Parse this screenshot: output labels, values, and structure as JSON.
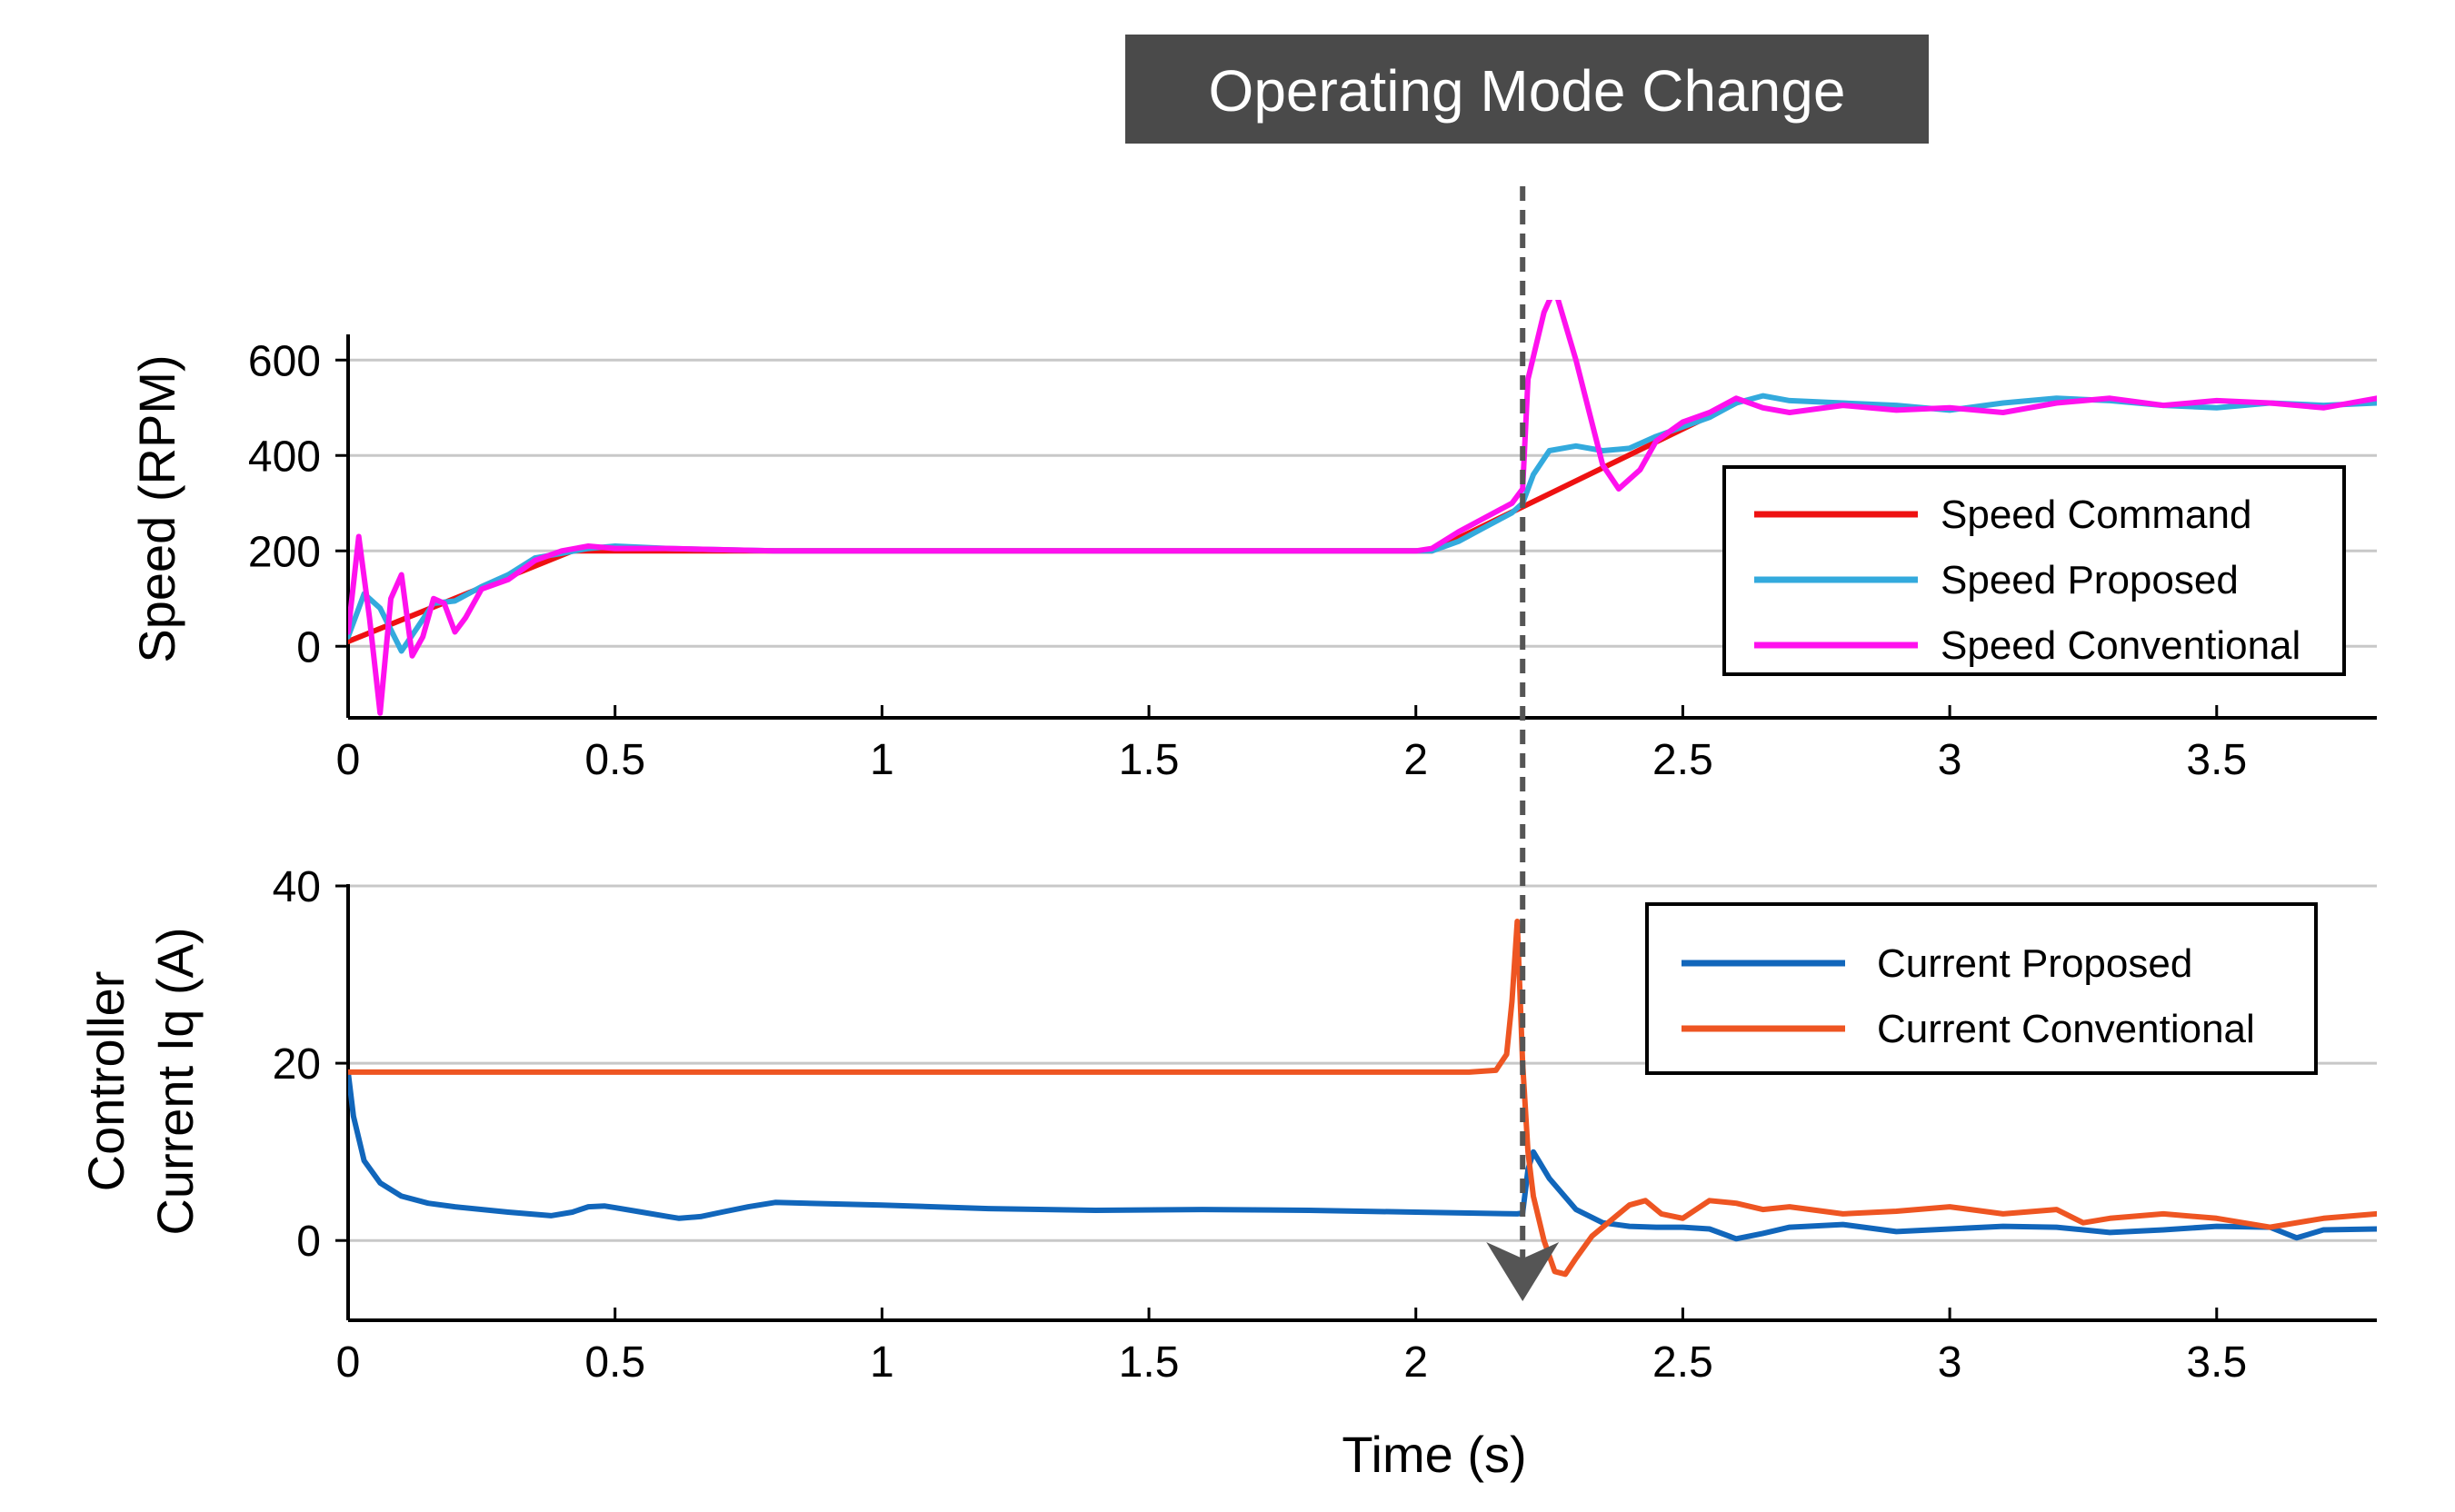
{
  "banner": {
    "text": "Operating Mode Change"
  },
  "event": {
    "time": 2.2
  },
  "xaxis_label": "Time (s)",
  "chart_data": [
    {
      "type": "line",
      "title": "",
      "ylabel": "Speed (RPM)",
      "xlabel": "",
      "xlim": [
        0,
        3.8
      ],
      "ylim": [
        -150,
        650
      ],
      "xticks": [
        0,
        0.5,
        1,
        1.5,
        2,
        2.5,
        3,
        3.5
      ],
      "xtick_labels": [
        "0",
        "0.5",
        "1",
        "1.5",
        "2",
        "2.5",
        "3",
        "3.5"
      ],
      "yticks": [
        0,
        200,
        400,
        600
      ],
      "ytick_labels": [
        "0",
        "200",
        "400",
        "600"
      ],
      "grid": "horizontal",
      "legend_position": "right",
      "series": [
        {
          "name": "Speed Command",
          "color": "#ee1111",
          "x": [
            0,
            0.42,
            2.03,
            2.6
          ],
          "y": [
            10,
            200,
            200,
            510
          ]
        },
        {
          "name": "Speed Proposed",
          "color": "#33aadd",
          "x": [
            0,
            0.03,
            0.06,
            0.1,
            0.13,
            0.16,
            0.2,
            0.25,
            0.3,
            0.35,
            0.4,
            0.45,
            0.5,
            0.6,
            0.8,
            1.0,
            1.5,
            2.0,
            2.03,
            2.08,
            2.13,
            2.18,
            2.2,
            2.22,
            2.25,
            2.3,
            2.35,
            2.4,
            2.45,
            2.5,
            2.55,
            2.6,
            2.65,
            2.7,
            2.8,
            2.9,
            3.0,
            3.1,
            3.2,
            3.3,
            3.4,
            3.5,
            3.6,
            3.7,
            3.8
          ],
          "y": [
            20,
            110,
            80,
            -10,
            40,
            90,
            95,
            125,
            150,
            185,
            195,
            205,
            210,
            205,
            200,
            200,
            200,
            200,
            200,
            220,
            250,
            280,
            300,
            360,
            410,
            420,
            410,
            415,
            440,
            460,
            480,
            510,
            525,
            515,
            510,
            505,
            495,
            510,
            520,
            515,
            505,
            500,
            510,
            505,
            510
          ]
        },
        {
          "name": "Speed Conventional",
          "color": "#ff11ee",
          "x": [
            0,
            0.02,
            0.04,
            0.06,
            0.08,
            0.1,
            0.12,
            0.14,
            0.16,
            0.18,
            0.2,
            0.22,
            0.25,
            0.3,
            0.35,
            0.4,
            0.45,
            0.5,
            0.6,
            0.8,
            1.0,
            1.5,
            2.0,
            2.03,
            2.08,
            2.13,
            2.18,
            2.2,
            2.21,
            2.24,
            2.26,
            2.3,
            2.35,
            2.38,
            2.42,
            2.45,
            2.5,
            2.55,
            2.6,
            2.65,
            2.7,
            2.8,
            2.9,
            3.0,
            3.1,
            3.2,
            3.3,
            3.4,
            3.5,
            3.6,
            3.7,
            3.8
          ],
          "y": [
            30,
            230,
            60,
            -140,
            100,
            150,
            -20,
            20,
            100,
            90,
            30,
            60,
            120,
            140,
            180,
            200,
            210,
            205,
            205,
            200,
            200,
            200,
            200,
            205,
            240,
            270,
            300,
            330,
            560,
            700,
            750,
            600,
            380,
            330,
            370,
            430,
            470,
            490,
            520,
            500,
            490,
            505,
            495,
            500,
            490,
            510,
            520,
            505,
            515,
            510,
            500,
            520
          ]
        }
      ]
    },
    {
      "type": "line",
      "title": "",
      "ylabel_lines": [
        "Controller",
        "Current Iq (A)"
      ],
      "xlabel": "Time (s)",
      "xlim": [
        0,
        3.8
      ],
      "ylim": [
        -9,
        40
      ],
      "xticks": [
        0,
        0.5,
        1,
        1.5,
        2,
        2.5,
        3,
        3.5
      ],
      "xtick_labels": [
        "0",
        "0.5",
        "1",
        "1.5",
        "2",
        "2.5",
        "3",
        "3.5"
      ],
      "yticks": [
        0,
        20,
        40
      ],
      "ytick_labels": [
        "0",
        "20",
        "40"
      ],
      "grid": "horizontal",
      "legend_position": "top-right",
      "series": [
        {
          "name": "Current Proposed",
          "color": "#1166bb",
          "x": [
            0,
            0.01,
            0.03,
            0.06,
            0.1,
            0.15,
            0.2,
            0.3,
            0.38,
            0.42,
            0.45,
            0.48,
            0.5,
            0.55,
            0.6,
            0.62,
            0.66,
            0.7,
            0.75,
            0.8,
            1.0,
            1.2,
            1.4,
            1.6,
            1.8,
            2.0,
            2.1,
            2.19,
            2.2,
            2.21,
            2.22,
            2.25,
            2.3,
            2.35,
            2.4,
            2.45,
            2.5,
            2.55,
            2.6,
            2.65,
            2.7,
            2.8,
            2.9,
            3.0,
            3.1,
            3.2,
            3.3,
            3.4,
            3.5,
            3.6,
            3.65,
            3.7,
            3.8
          ],
          "y": [
            19,
            14,
            9,
            6.5,
            5,
            4.2,
            3.8,
            3.2,
            2.8,
            3.2,
            3.8,
            3.9,
            3.7,
            3.2,
            2.7,
            2.5,
            2.7,
            3.2,
            3.8,
            4.3,
            4.0,
            3.6,
            3.4,
            3.5,
            3.4,
            3.2,
            3.1,
            3.0,
            3.1,
            8,
            10,
            7,
            3.5,
            2.0,
            1.6,
            1.5,
            1.5,
            1.3,
            0.2,
            0.8,
            1.5,
            1.8,
            1.0,
            1.3,
            1.6,
            1.5,
            0.9,
            1.2,
            1.6,
            1.5,
            0.3,
            1.2,
            1.3
          ]
        },
        {
          "name": "Current Conventional",
          "color": "#ee5522",
          "x": [
            0,
            0.2,
            0.5,
            1.0,
            1.5,
            2.0,
            2.1,
            2.15,
            2.17,
            2.18,
            2.19,
            2.2,
            2.21,
            2.22,
            2.24,
            2.26,
            2.28,
            2.3,
            2.33,
            2.36,
            2.4,
            2.43,
            2.46,
            2.5,
            2.55,
            2.6,
            2.65,
            2.7,
            2.8,
            2.9,
            3.0,
            3.1,
            3.2,
            3.25,
            3.3,
            3.4,
            3.5,
            3.6,
            3.7,
            3.8
          ],
          "y": [
            19,
            19,
            19,
            19,
            19,
            19,
            19,
            19.2,
            21,
            27,
            36,
            20,
            10,
            5,
            0,
            -3.5,
            -3.8,
            -2,
            0.5,
            2,
            4,
            4.5,
            3,
            2.5,
            4.5,
            4.2,
            3.5,
            3.8,
            3.0,
            3.3,
            3.8,
            3.0,
            3.5,
            2.0,
            2.5,
            3.0,
            2.5,
            1.5,
            2.5,
            3.0
          ]
        }
      ]
    }
  ]
}
